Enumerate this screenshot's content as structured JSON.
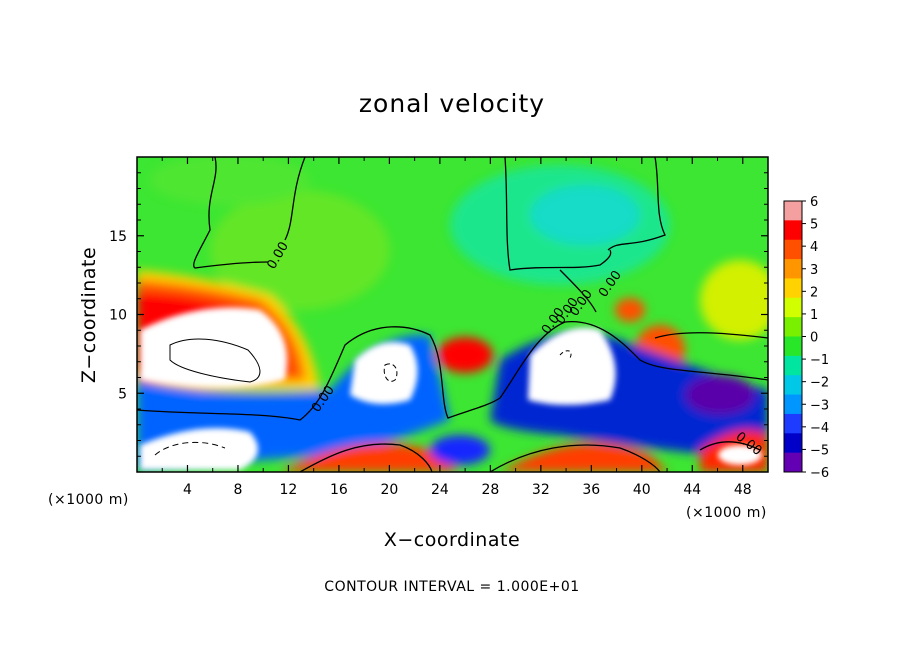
{
  "chart_data": {
    "type": "heatmap",
    "title": "zonal velocity",
    "xlabel": "X−coordinate",
    "ylabel": "Z−coordinate",
    "x_units_label": "(×1000 m)",
    "z_units_label": "(×1000 m)",
    "xlim": [
      0,
      50
    ],
    "ylim": [
      0,
      20
    ],
    "x_ticks": [
      4,
      8,
      12,
      16,
      20,
      24,
      28,
      32,
      36,
      40,
      44,
      48
    ],
    "y_ticks": [
      5,
      10,
      15
    ],
    "colorbar": {
      "range": [
        -6,
        6
      ],
      "ticks": [
        6,
        5,
        4,
        3,
        2,
        1,
        0,
        -1,
        -2,
        -3,
        -4,
        -5,
        -6
      ],
      "colors": [
        "#f4a0a0",
        "#ff0000",
        "#ff5000",
        "#ff9600",
        "#ffd200",
        "#d2ff00",
        "#78f000",
        "#28e628",
        "#00e6a0",
        "#00c8e6",
        "#0096ff",
        "#1e3cff",
        "#0000c8",
        "#6400b4"
      ]
    },
    "out_of_range_color": "#ffffff",
    "contour_labels": [
      "0.00",
      "0.00",
      "0.00",
      "0.00",
      "0.00",
      "0.00",
      "0.00"
    ],
    "contour_interval_text": "CONTOUR INTERVAL =  1.000E+01"
  }
}
